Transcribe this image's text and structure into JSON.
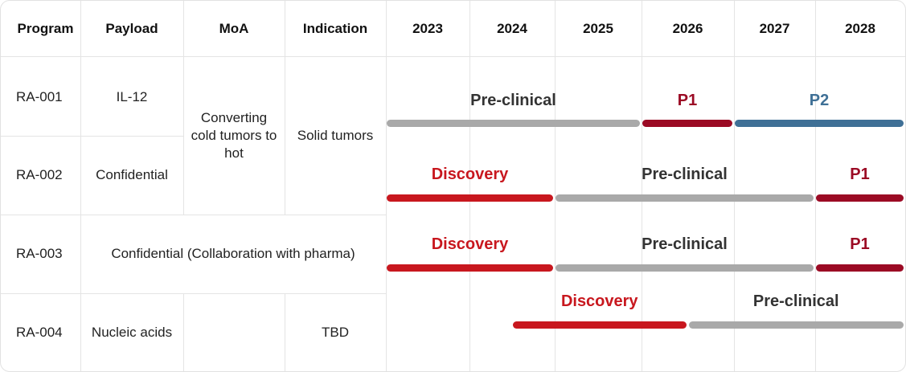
{
  "headers": {
    "program": "Program",
    "payload": "Payload",
    "moa": "MoA",
    "indication": "Indication",
    "years": [
      "2023",
      "2024",
      "2025",
      "2026",
      "2027",
      "2028"
    ]
  },
  "rows": [
    {
      "program": "RA-001",
      "payload": "IL-12"
    },
    {
      "program": "RA-002",
      "payload": "Confidential"
    },
    {
      "program": "RA-003",
      "payload": "Confidential (Collaboration with pharma)"
    },
    {
      "program": "RA-004",
      "payload": "Nucleic acids",
      "indication": "TBD"
    }
  ],
  "merged": {
    "moa_rows_1_2": "Converting cold tumors to hot",
    "indication_rows_1_2": "Solid tumors"
  },
  "colors": {
    "discovery": "#c8171e",
    "preclinical": "#a9a9a9",
    "preclinical_text": "#333333",
    "p1": "#9b0a24",
    "p2": "#3f7096"
  },
  "chart_data": {
    "type": "gantt",
    "time_axis": [
      "2023",
      "2024",
      "2025",
      "2026",
      "2027",
      "2028"
    ],
    "domain": [
      2023,
      2029
    ],
    "rows": [
      {
        "program": "RA-001",
        "phases": [
          {
            "name": "Pre-clinical",
            "kind": "preclinical",
            "start": 2023.0,
            "end": 2026.0
          },
          {
            "name": "P1",
            "kind": "p1",
            "start": 2026.0,
            "end": 2027.0
          },
          {
            "name": "P2",
            "kind": "p2",
            "start": 2027.0,
            "end": 2029.0
          }
        ]
      },
      {
        "program": "RA-002",
        "phases": [
          {
            "name": "Discovery",
            "kind": "discovery",
            "start": 2023.0,
            "end": 2025.0
          },
          {
            "name": "Pre-clinical",
            "kind": "preclinical",
            "start": 2025.0,
            "end": 2028.0
          },
          {
            "name": "P1",
            "kind": "p1",
            "start": 2028.0,
            "end": 2029.0
          }
        ]
      },
      {
        "program": "RA-003",
        "phases": [
          {
            "name": "Discovery",
            "kind": "discovery",
            "start": 2023.0,
            "end": 2025.0
          },
          {
            "name": "Pre-clinical",
            "kind": "preclinical",
            "start": 2025.0,
            "end": 2028.0
          },
          {
            "name": "P1",
            "kind": "p1",
            "start": 2028.0,
            "end": 2029.0
          }
        ]
      },
      {
        "program": "RA-004",
        "phases": [
          {
            "name": "Discovery",
            "kind": "discovery",
            "start": 2024.5,
            "end": 2026.5
          },
          {
            "name": "Pre-clinical",
            "kind": "preclinical",
            "start": 2026.5,
            "end": 2029.0
          }
        ]
      }
    ]
  }
}
